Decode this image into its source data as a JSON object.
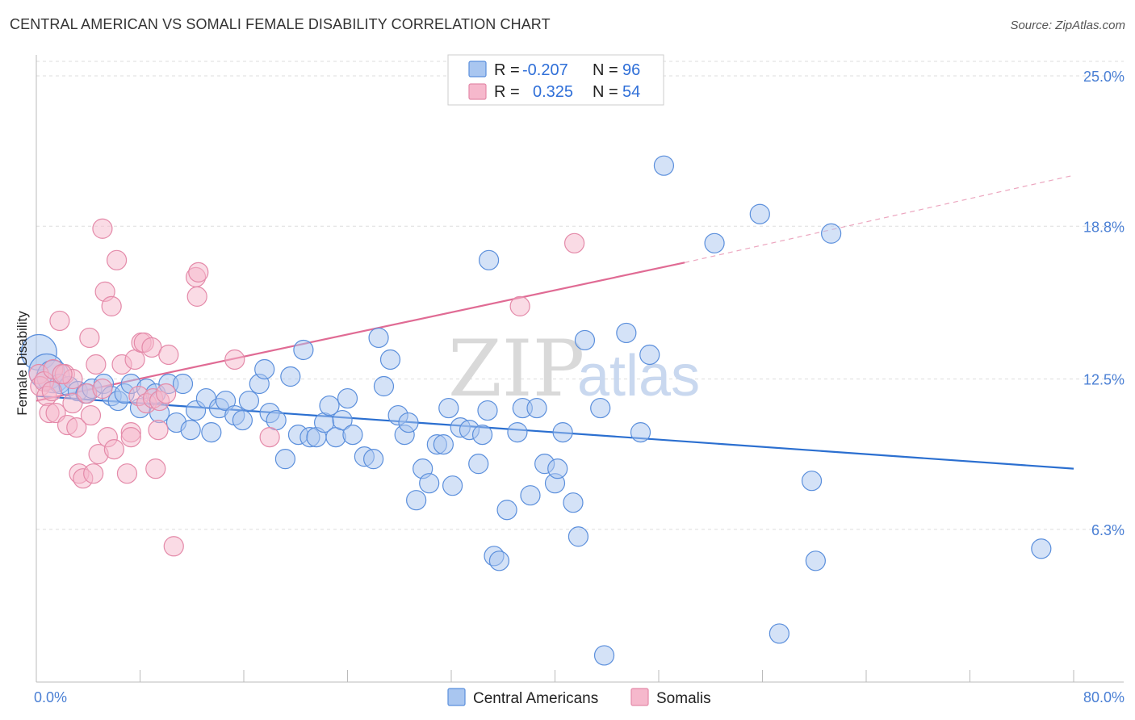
{
  "title": "CENTRAL AMERICAN VS SOMALI FEMALE DISABILITY CORRELATION CHART",
  "source": "Source: ZipAtlas.com",
  "watermark": {
    "zip": "ZIP",
    "atlas": "atlas"
  },
  "legend_box": {
    "rows": [
      {
        "r_label": "R =",
        "r_value": "-0.207",
        "n_label": "N =",
        "n_value": "96"
      },
      {
        "r_label": "R =",
        "r_value": "0.325",
        "n_label": "N =",
        "n_value": "54"
      }
    ]
  },
  "colors": {
    "blue_fill": "#a9c6f0",
    "blue_stroke": "#5b8fdc",
    "blue_line": "#2b6fd0",
    "pink_fill": "#f6b8cc",
    "pink_stroke": "#e48aa9",
    "pink_line": "#e06b94"
  },
  "chart_data": {
    "type": "scatter",
    "title": "CENTRAL AMERICAN VS SOMALI FEMALE DISABILITY CORRELATION CHART",
    "xlabel": "",
    "ylabel": "Female Disability",
    "xlim": [
      0,
      80
    ],
    "ylim": [
      0,
      25.6
    ],
    "x_tick_labels": {
      "left": "0.0%",
      "right": "80.0%"
    },
    "y_ticks": [
      {
        "value": 25.0,
        "label": "25.0%"
      },
      {
        "value": 18.8,
        "label": "18.8%"
      },
      {
        "value": 12.5,
        "label": "12.5%"
      },
      {
        "value": 6.3,
        "label": "6.3%"
      }
    ],
    "grid": true,
    "legend_position": "top-center",
    "series": [
      {
        "name": "Central Americans",
        "color": "blue",
        "trend": {
          "x0": 0,
          "y0": 11.8,
          "x1": 80,
          "y1": 8.8
        },
        "points": [
          [
            0.2,
            13.6,
            1.6
          ],
          [
            0.8,
            12.8,
            1.2
          ],
          [
            1.3,
            12.6,
            0.9
          ],
          [
            1.8,
            12.3,
            0.6
          ],
          [
            2.5,
            12.2,
            0.6
          ],
          [
            3.2,
            12.0,
            0.6
          ],
          [
            3.8,
            11.9,
            0.6
          ],
          [
            4.3,
            12.1,
            0.6
          ],
          [
            5.2,
            12.3,
            0.6
          ],
          [
            5.8,
            11.8,
            0.6
          ],
          [
            6.3,
            11.6,
            0.6
          ],
          [
            6.8,
            11.9,
            0.6
          ],
          [
            7.3,
            12.3,
            0.6
          ],
          [
            8.0,
            11.3,
            0.6
          ],
          [
            8.5,
            12.1,
            0.6
          ],
          [
            9.2,
            11.9,
            0.6
          ],
          [
            9.5,
            11.1,
            0.6
          ],
          [
            10.2,
            12.3,
            0.6
          ],
          [
            10.8,
            10.7,
            0.6
          ],
          [
            11.3,
            12.3,
            0.6
          ],
          [
            11.9,
            10.4,
            0.6
          ],
          [
            12.3,
            11.2,
            0.6
          ],
          [
            13.1,
            11.7,
            0.6
          ],
          [
            13.5,
            10.3,
            0.6
          ],
          [
            14.1,
            11.3,
            0.6
          ],
          [
            14.6,
            11.6,
            0.6
          ],
          [
            15.3,
            11.0,
            0.6
          ],
          [
            15.9,
            10.8,
            0.6
          ],
          [
            16.4,
            11.6,
            0.6
          ],
          [
            17.2,
            12.3,
            0.6
          ],
          [
            17.6,
            12.9,
            0.6
          ],
          [
            18.0,
            11.1,
            0.6
          ],
          [
            18.5,
            10.8,
            0.6
          ],
          [
            19.2,
            9.2,
            0.6
          ],
          [
            19.6,
            12.6,
            0.6
          ],
          [
            20.2,
            10.2,
            0.6
          ],
          [
            20.6,
            13.7,
            0.6
          ],
          [
            21.1,
            10.1,
            0.6
          ],
          [
            21.6,
            10.1,
            0.6
          ],
          [
            22.2,
            10.7,
            0.6
          ],
          [
            22.6,
            11.4,
            0.6
          ],
          [
            23.1,
            10.1,
            0.6
          ],
          [
            23.6,
            10.8,
            0.6
          ],
          [
            24.0,
            11.7,
            0.6
          ],
          [
            24.4,
            10.2,
            0.6
          ],
          [
            25.3,
            9.3,
            0.6
          ],
          [
            26.0,
            9.2,
            0.6
          ],
          [
            26.4,
            14.2,
            0.6
          ],
          [
            26.8,
            12.2,
            0.6
          ],
          [
            27.3,
            13.3,
            0.6
          ],
          [
            27.9,
            11.0,
            0.6
          ],
          [
            28.4,
            10.2,
            0.6
          ],
          [
            28.7,
            10.7,
            0.6
          ],
          [
            29.3,
            7.5,
            0.6
          ],
          [
            29.8,
            8.8,
            0.6
          ],
          [
            30.3,
            8.2,
            0.6
          ],
          [
            30.9,
            9.8,
            0.6
          ],
          [
            31.4,
            9.8,
            0.6
          ],
          [
            31.8,
            11.3,
            0.6
          ],
          [
            32.1,
            8.1,
            0.6
          ],
          [
            32.7,
            10.5,
            0.6
          ],
          [
            33.4,
            10.4,
            0.6
          ],
          [
            34.1,
            9.0,
            0.6
          ],
          [
            34.4,
            10.2,
            0.6
          ],
          [
            34.8,
            11.2,
            0.6
          ],
          [
            34.9,
            17.4,
            0.6
          ],
          [
            35.3,
            5.2,
            0.6
          ],
          [
            35.7,
            5.0,
            0.6
          ],
          [
            36.3,
            7.1,
            0.6
          ],
          [
            37.1,
            10.3,
            0.6
          ],
          [
            37.5,
            11.3,
            0.6
          ],
          [
            38.1,
            7.7,
            0.6
          ],
          [
            38.6,
            11.3,
            0.6
          ],
          [
            39.2,
            9.0,
            0.6
          ],
          [
            40.0,
            8.2,
            0.6
          ],
          [
            40.2,
            8.8,
            0.6
          ],
          [
            40.6,
            10.3,
            0.6
          ],
          [
            41.4,
            7.4,
            0.6
          ],
          [
            41.8,
            6.0,
            0.6
          ],
          [
            42.3,
            14.1,
            0.6
          ],
          [
            43.5,
            11.3,
            0.6
          ],
          [
            43.8,
            1.1,
            0.6
          ],
          [
            45.5,
            14.4,
            0.6
          ],
          [
            46.6,
            10.3,
            0.6
          ],
          [
            47.3,
            13.5,
            0.6
          ],
          [
            48.4,
            21.3,
            0.6
          ],
          [
            52.3,
            18.1,
            0.6
          ],
          [
            55.8,
            19.3,
            0.6
          ],
          [
            57.3,
            2.0,
            0.6
          ],
          [
            59.8,
            8.3,
            0.6
          ],
          [
            60.1,
            5.0,
            0.6
          ],
          [
            61.3,
            18.5,
            0.6
          ],
          [
            77.5,
            5.5,
            0.6
          ]
        ]
      },
      {
        "name": "Somalis",
        "color": "pink",
        "trend": {
          "x0": 0,
          "y0": 11.6,
          "x1": 50,
          "y1": 17.3,
          "dashed_to_x": 80,
          "dashed_to_y": 20.9
        },
        "points": [
          [
            0.2,
            12.7,
            0.6
          ],
          [
            0.3,
            12.2,
            0.6
          ],
          [
            0.6,
            12.4,
            0.6
          ],
          [
            0.8,
            11.8,
            0.6
          ],
          [
            1.0,
            11.1,
            0.6
          ],
          [
            1.3,
            12.9,
            0.6
          ],
          [
            1.5,
            11.1,
            0.6
          ],
          [
            1.8,
            14.9,
            0.6
          ],
          [
            2.2,
            12.7,
            0.6
          ],
          [
            2.4,
            10.6,
            0.6
          ],
          [
            2.8,
            12.5,
            0.6
          ],
          [
            2.8,
            11.5,
            0.6
          ],
          [
            3.1,
            10.5,
            0.6
          ],
          [
            3.3,
            8.6,
            0.6
          ],
          [
            3.6,
            8.4,
            0.6
          ],
          [
            3.9,
            11.9,
            0.6
          ],
          [
            4.1,
            14.2,
            0.6
          ],
          [
            4.2,
            11.0,
            0.6
          ],
          [
            4.4,
            8.6,
            0.6
          ],
          [
            4.6,
            13.1,
            0.6
          ],
          [
            4.8,
            9.4,
            0.6
          ],
          [
            5.1,
            12.1,
            0.6
          ],
          [
            5.1,
            18.7,
            0.6
          ],
          [
            5.3,
            16.1,
            0.6
          ],
          [
            5.5,
            10.1,
            0.6
          ],
          [
            5.8,
            15.5,
            0.6
          ],
          [
            6.0,
            9.6,
            0.6
          ],
          [
            6.2,
            17.4,
            0.6
          ],
          [
            6.6,
            13.1,
            0.6
          ],
          [
            7.0,
            8.6,
            0.6
          ],
          [
            7.3,
            10.3,
            0.6
          ],
          [
            7.3,
            10.1,
            0.6
          ],
          [
            7.6,
            13.3,
            0.6
          ],
          [
            7.9,
            11.8,
            0.6
          ],
          [
            8.1,
            14.0,
            0.6
          ],
          [
            8.3,
            14.0,
            0.6
          ],
          [
            8.5,
            11.5,
            0.6
          ],
          [
            8.9,
            13.8,
            0.6
          ],
          [
            9.0,
            11.7,
            0.6
          ],
          [
            9.2,
            8.8,
            0.6
          ],
          [
            9.4,
            10.4,
            0.6
          ],
          [
            9.5,
            11.6,
            0.6
          ],
          [
            10.0,
            11.9,
            0.6
          ],
          [
            10.2,
            13.5,
            0.6
          ],
          [
            10.6,
            5.6,
            0.6
          ],
          [
            12.3,
            16.7,
            0.6
          ],
          [
            12.4,
            15.9,
            0.6
          ],
          [
            12.5,
            16.9,
            0.6
          ],
          [
            15.3,
            13.3,
            0.6
          ],
          [
            18.0,
            10.1,
            0.6
          ],
          [
            37.3,
            15.5,
            0.6
          ],
          [
            41.5,
            18.1,
            0.6
          ],
          [
            1.2,
            12.0,
            0.6
          ],
          [
            2.0,
            12.7,
            0.6
          ]
        ]
      }
    ]
  },
  "bottom_legend": [
    {
      "label": "Central Americans"
    },
    {
      "label": "Somalis"
    }
  ]
}
